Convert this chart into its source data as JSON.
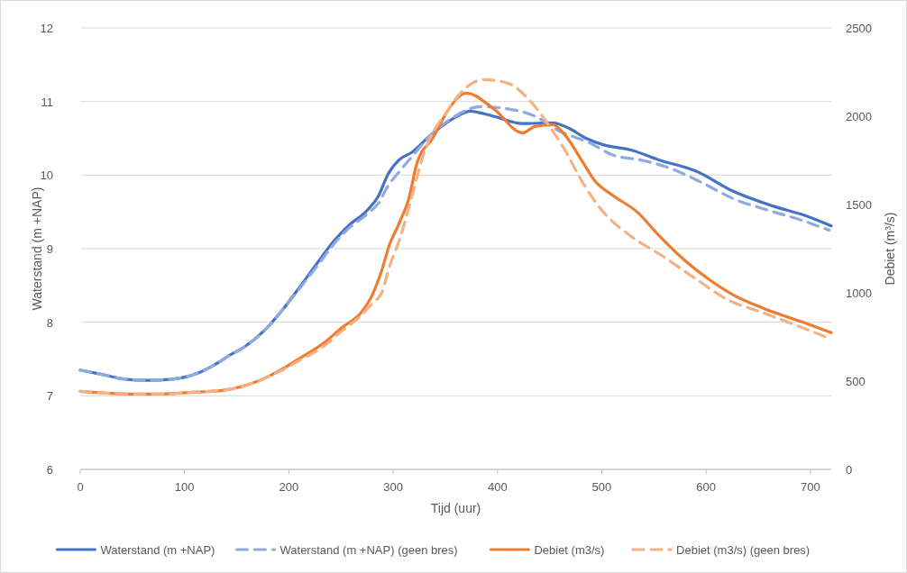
{
  "chart_data": {
    "type": "line",
    "xlabel": "Tijd (uur)",
    "ylabel": "Waterstand (m +NAP)",
    "y2label": "Debiet (m³/s)",
    "xlim": [
      0,
      720
    ],
    "xticks": [
      0,
      100,
      200,
      300,
      400,
      500,
      600,
      700
    ],
    "ylim": [
      6,
      12
    ],
    "yticks": [
      6,
      7,
      8,
      9,
      10,
      11,
      12
    ],
    "y2lim": [
      0,
      2500
    ],
    "y2ticks": [
      0,
      500,
      1000,
      1500,
      2000,
      2500
    ],
    "grid": "y",
    "legend": "bottom",
    "series": [
      {
        "name": "Waterstand (m +NAP)",
        "color": "#4472c4",
        "line_style": "solid",
        "x": [
          0,
          21,
          41,
          64,
          90,
          113,
          131,
          142,
          159,
          176,
          194,
          211,
          228,
          243,
          257,
          275,
          286,
          295,
          306,
          318,
          338,
          364,
          373,
          396,
          424,
          453,
          468,
          485,
          502,
          528,
          554,
          591,
          626,
          664,
          695,
          720
        ],
        "values": [
          7.35,
          7.29,
          7.23,
          7.21,
          7.23,
          7.31,
          7.44,
          7.54,
          7.68,
          7.88,
          8.17,
          8.49,
          8.82,
          9.1,
          9.31,
          9.52,
          9.72,
          10.01,
          10.21,
          10.31,
          10.57,
          10.82,
          10.87,
          10.8,
          10.7,
          10.71,
          10.64,
          10.5,
          10.41,
          10.34,
          10.21,
          10.05,
          9.78,
          9.58,
          9.45,
          9.31
        ]
      },
      {
        "name": "Waterstand (m +NAP) (geen bres)",
        "color": "#8faadc",
        "line_style": "dashed",
        "x": [
          0,
          21,
          41,
          64,
          90,
          113,
          131,
          142,
          159,
          176,
          194,
          211,
          228,
          243,
          257,
          275,
          286,
          295,
          306,
          318,
          338,
          355,
          384,
          410,
          436,
          459,
          488,
          511,
          539,
          568,
          597,
          626,
          660,
          695,
          718
        ],
        "values": [
          7.35,
          7.29,
          7.23,
          7.21,
          7.23,
          7.31,
          7.44,
          7.54,
          7.68,
          7.88,
          8.17,
          8.47,
          8.78,
          9.06,
          9.27,
          9.47,
          9.62,
          9.85,
          10.05,
          10.25,
          10.57,
          10.76,
          10.93,
          10.9,
          10.8,
          10.6,
          10.44,
          10.27,
          10.2,
          10.08,
          9.89,
          9.68,
          9.52,
          9.37,
          9.25
        ]
      },
      {
        "name": "Debiet (m3/s)",
        "color": "#ed7d31",
        "line_style": "solid",
        "axis": "y2",
        "x": [
          0,
          50,
          79,
          107,
          136,
          165,
          188,
          211,
          234,
          251,
          269,
          280,
          289,
          296,
          306,
          315,
          323,
          338,
          352,
          370,
          396,
          424,
          436,
          453,
          465,
          482,
          493,
          511,
          534,
          554,
          574,
          603,
          626,
          655,
          692,
          720
        ],
        "values": [
          442,
          427,
          427,
          437,
          447,
          488,
          549,
          631,
          718,
          804,
          886,
          988,
          1126,
          1264,
          1397,
          1534,
          1738,
          1876,
          2029,
          2131,
          2044,
          1906,
          1942,
          1952,
          1891,
          1738,
          1636,
          1550,
          1457,
          1330,
          1213,
          1075,
          988,
          912,
          835,
          774
        ]
      },
      {
        "name": "Debiet (m3/s) (geen bres)",
        "color": "#f4b183",
        "line_style": "dashed",
        "axis": "y2",
        "x": [
          0,
          50,
          79,
          107,
          136,
          165,
          188,
          211,
          234,
          251,
          269,
          280,
          289,
          296,
          306,
          315,
          330,
          352,
          367,
          387,
          410,
          430,
          450,
          465,
          482,
          500,
          528,
          557,
          591,
          620,
          655,
          689,
          718
        ],
        "values": [
          442,
          427,
          427,
          437,
          447,
          488,
          545,
          620,
          700,
          785,
          870,
          940,
          1000,
          1140,
          1300,
          1480,
          1800,
          2030,
          2146,
          2207,
          2187,
          2095,
          1942,
          1805,
          1621,
          1468,
          1320,
          1213,
          1075,
          963,
          886,
          810,
          743
        ]
      }
    ]
  }
}
